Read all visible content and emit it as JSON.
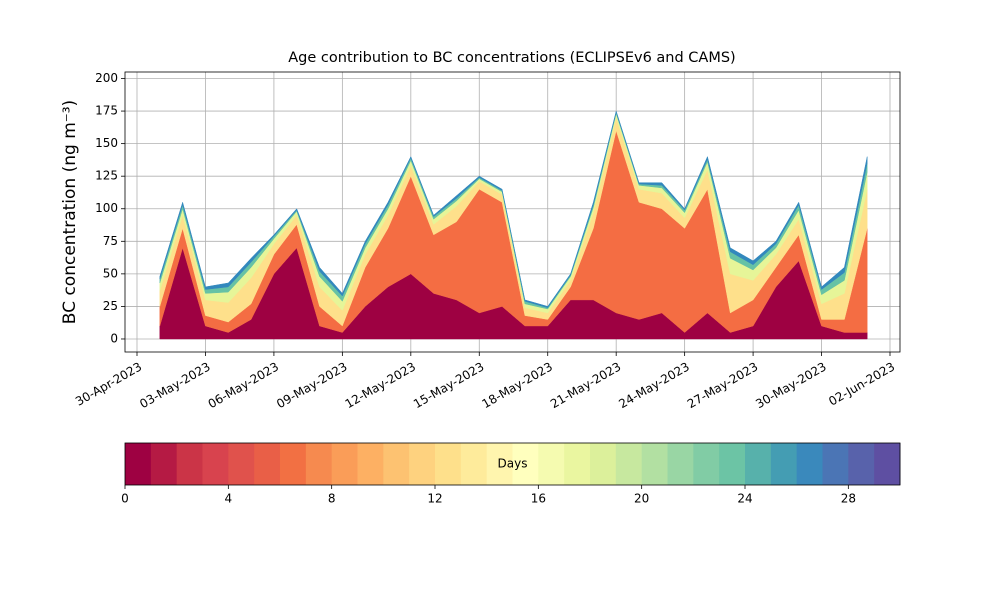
{
  "chart_data": {
    "type": "stacked_area",
    "title": "Age contribution to BC concentrations (ECLIPSEv6 and CAMS)",
    "y_label": "BC concentration (ng m⁻³)",
    "x": [
      "01-May-2023",
      "02-May-2023",
      "03-May-2023",
      "04-May-2023",
      "05-May-2023",
      "06-May-2023",
      "07-May-2023",
      "08-May-2023",
      "09-May-2023",
      "10-May-2023",
      "11-May-2023",
      "12-May-2023",
      "13-May-2023",
      "14-May-2023",
      "15-May-2023",
      "16-May-2023",
      "17-May-2023",
      "18-May-2023",
      "19-May-2023",
      "20-May-2023",
      "21-May-2023",
      "22-May-2023",
      "23-May-2023",
      "24-May-2023",
      "25-May-2023",
      "26-May-2023",
      "27-May-2023",
      "28-May-2023",
      "29-May-2023",
      "30-May-2023",
      "31-May-2023",
      "01-Jun-2023"
    ],
    "series": [
      {
        "color": "#9e0142",
        "values": [
          10,
          70,
          10,
          5,
          15,
          50,
          70,
          10,
          5,
          25,
          40,
          50,
          35,
          30,
          20,
          25,
          10,
          10,
          30,
          30,
          20,
          15,
          20,
          5,
          20,
          5,
          10,
          40,
          60,
          10,
          5,
          5
        ]
      },
      {
        "color": "#f46d43",
        "values": [
          15,
          15,
          8,
          8,
          12,
          15,
          18,
          15,
          5,
          30,
          45,
          75,
          45,
          60,
          95,
          80,
          8,
          5,
          10,
          55,
          140,
          90,
          80,
          80,
          95,
          15,
          20,
          15,
          20,
          5,
          10,
          80
        ]
      },
      {
        "color": "#fee08b",
        "values": [
          12,
          10,
          12,
          15,
          20,
          8,
          7,
          15,
          12,
          10,
          10,
          8,
          8,
          12,
          6,
          6,
          6,
          5,
          5,
          12,
          10,
          10,
          12,
          8,
          15,
          30,
          15,
          10,
          12,
          12,
          20,
          30
        ]
      },
      {
        "color": "#e6f598",
        "values": [
          6,
          5,
          5,
          8,
          8,
          4,
          3,
          8,
          7,
          5,
          5,
          4,
          4,
          4,
          2,
          2,
          3,
          3,
          3,
          4,
          3,
          3,
          4,
          4,
          6,
          12,
          8,
          5,
          7,
          7,
          10,
          13
        ]
      },
      {
        "color": "#66c2a5",
        "values": [
          3,
          3,
          3,
          4,
          4,
          2,
          1,
          4,
          4,
          3,
          3,
          2,
          2,
          2,
          1,
          1,
          2,
          1,
          1,
          2,
          1,
          1,
          2,
          2,
          2,
          5,
          4,
          3,
          4,
          4,
          6,
          7
        ]
      },
      {
        "color": "#3288bd",
        "values": [
          2,
          2,
          2,
          3,
          3,
          1,
          1,
          3,
          2,
          2,
          2,
          1,
          1,
          2,
          1,
          1,
          1,
          1,
          1,
          2,
          1,
          1,
          2,
          1,
          2,
          3,
          3,
          2,
          2,
          2,
          4,
          5
        ]
      }
    ],
    "xlim": [
      "30-Apr-2023",
      "02-Jun-2023"
    ],
    "xticks": [
      "30-Apr-2023",
      "03-May-2023",
      "06-May-2023",
      "09-May-2023",
      "12-May-2023",
      "15-May-2023",
      "18-May-2023",
      "21-May-2023",
      "24-May-2023",
      "27-May-2023",
      "30-May-2023",
      "02-Jun-2023"
    ],
    "ylim": [
      -10,
      205
    ],
    "yticks": [
      0,
      25,
      50,
      75,
      100,
      125,
      150,
      175,
      200
    ],
    "grid": true,
    "colorbar": {
      "label": "Days",
      "lim": [
        0,
        30
      ],
      "ticks": [
        0,
        4,
        8,
        12,
        16,
        20,
        24,
        28
      ],
      "colors": [
        "#9e0142",
        "#b51a44",
        "#cb3447",
        "#d8434e",
        "#e0524c",
        "#e95f47",
        "#f27043",
        "#f68a4f",
        "#fa9d58",
        "#fdb063",
        "#fdc271",
        "#fed27f",
        "#fee08b",
        "#feeb9b",
        "#fff5ae",
        "#ffffbe",
        "#f5fbb0",
        "#eaf6a0",
        "#dcf09b",
        "#c7e89f",
        "#b2e0a2",
        "#99d6a4",
        "#81cca5",
        "#6cc4a5",
        "#57b1ab",
        "#449db3",
        "#3a89bc",
        "#4b75b5",
        "#5862ab",
        "#5e4fa2"
      ]
    }
  }
}
